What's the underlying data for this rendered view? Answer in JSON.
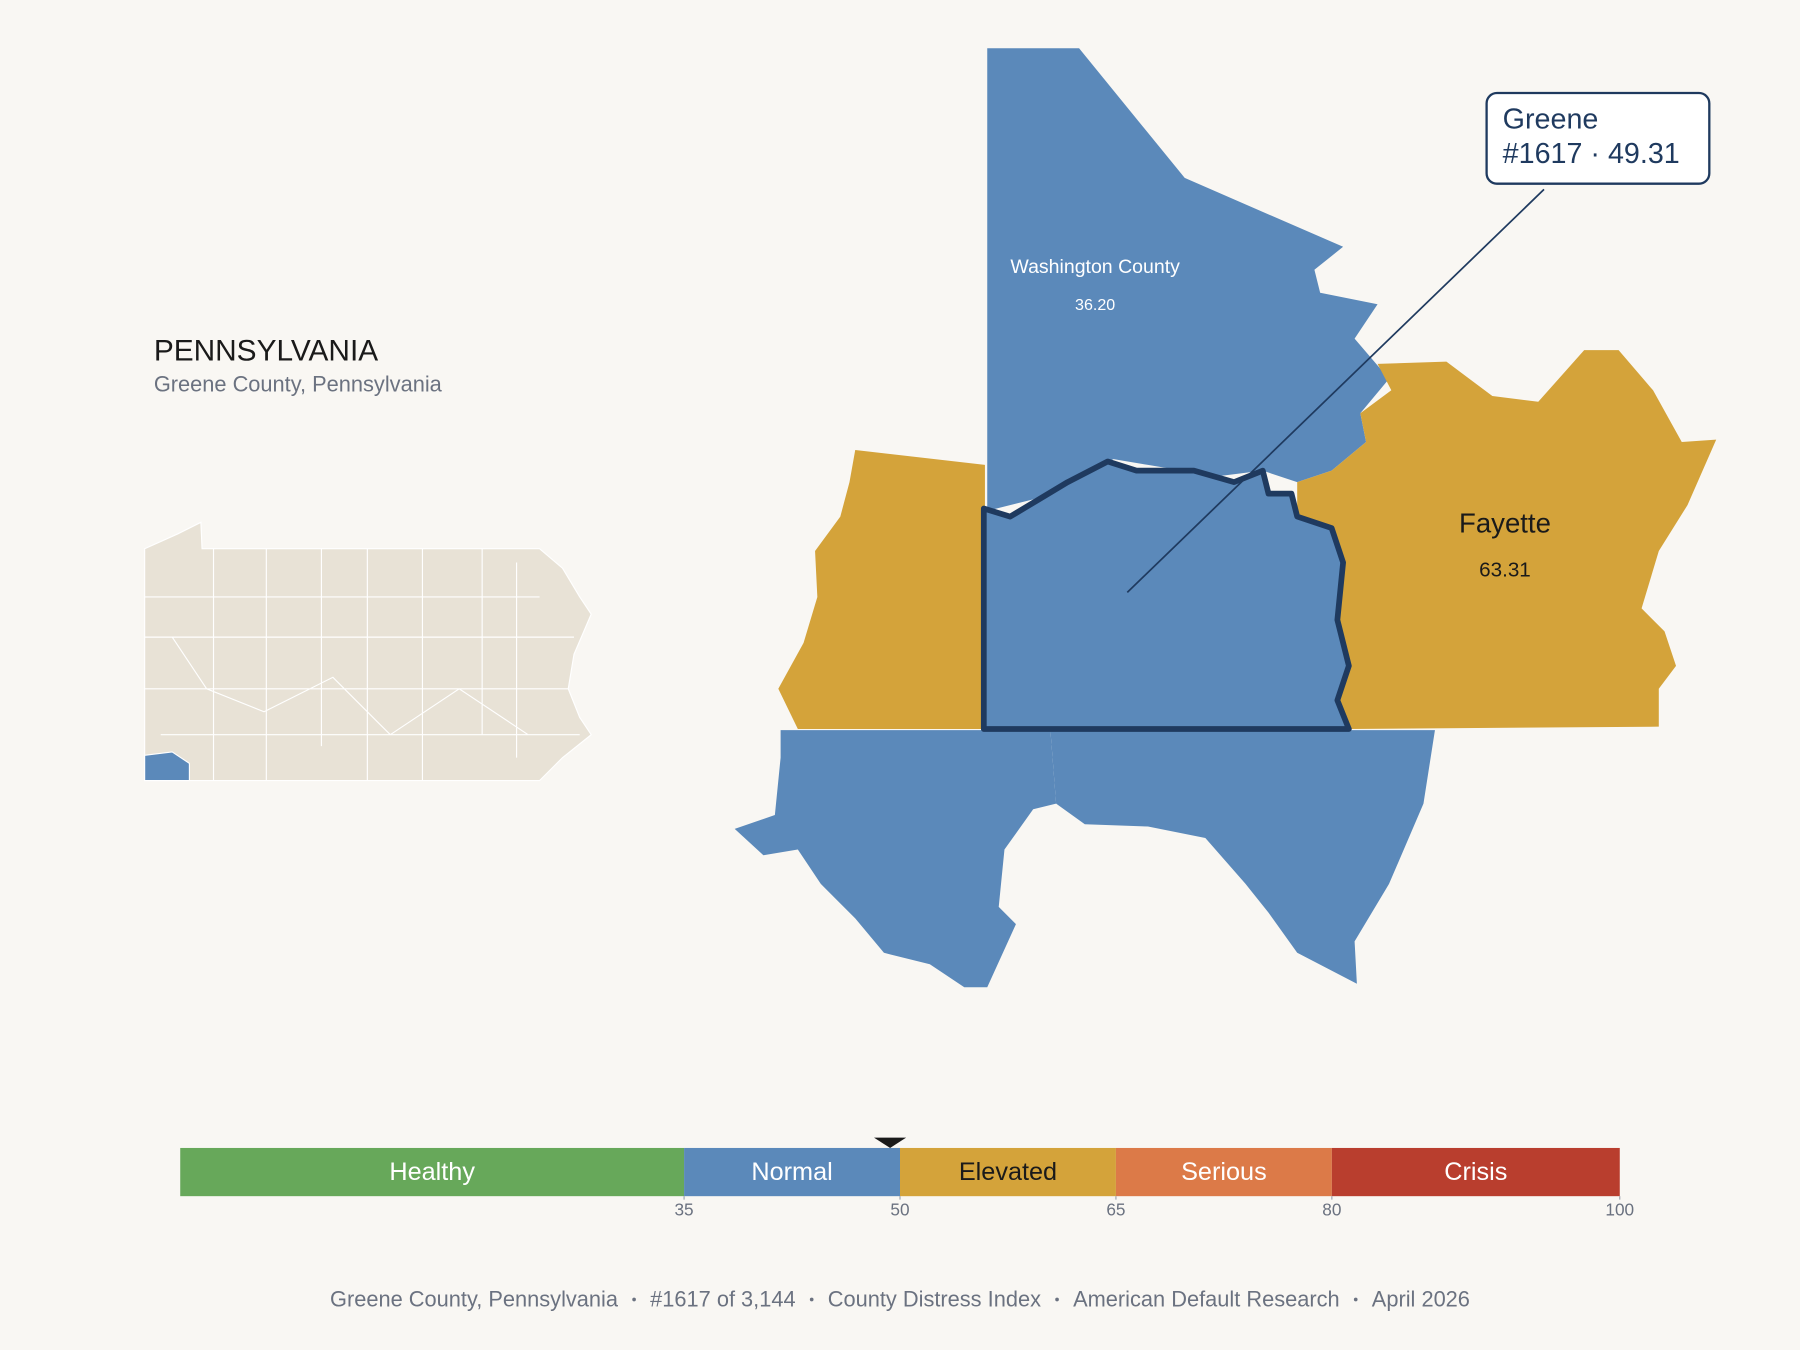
{
  "header": {
    "title": "PENNSYLVANIA",
    "subtitle": "Greene County, Pennsylvania"
  },
  "map": {
    "counties": [
      {
        "label": "Washington County",
        "value": "36.20"
      },
      {
        "label": "Fayette",
        "value": "63.31"
      }
    ],
    "callout": {
      "name": "Greene",
      "detail": "#1617 · 49.31"
    }
  },
  "scale": {
    "range": [
      0,
      100
    ],
    "marker": 49.31,
    "ticks": [
      35,
      50,
      65,
      80,
      100
    ],
    "bands": [
      {
        "label": "Healthy",
        "color": "#67a85a"
      },
      {
        "label": "Normal",
        "color": "#5b89ba"
      },
      {
        "label": "Elevated",
        "color": "#d4a33a"
      },
      {
        "label": "Serious",
        "color": "#dc7a48"
      },
      {
        "label": "Crisis",
        "color": "#b93e2e"
      }
    ]
  },
  "footer": {
    "items": [
      "Greene County, Pennsylvania",
      "#1617 of 3,144",
      "County Distress Index",
      "American Default Research",
      "April 2026"
    ]
  }
}
